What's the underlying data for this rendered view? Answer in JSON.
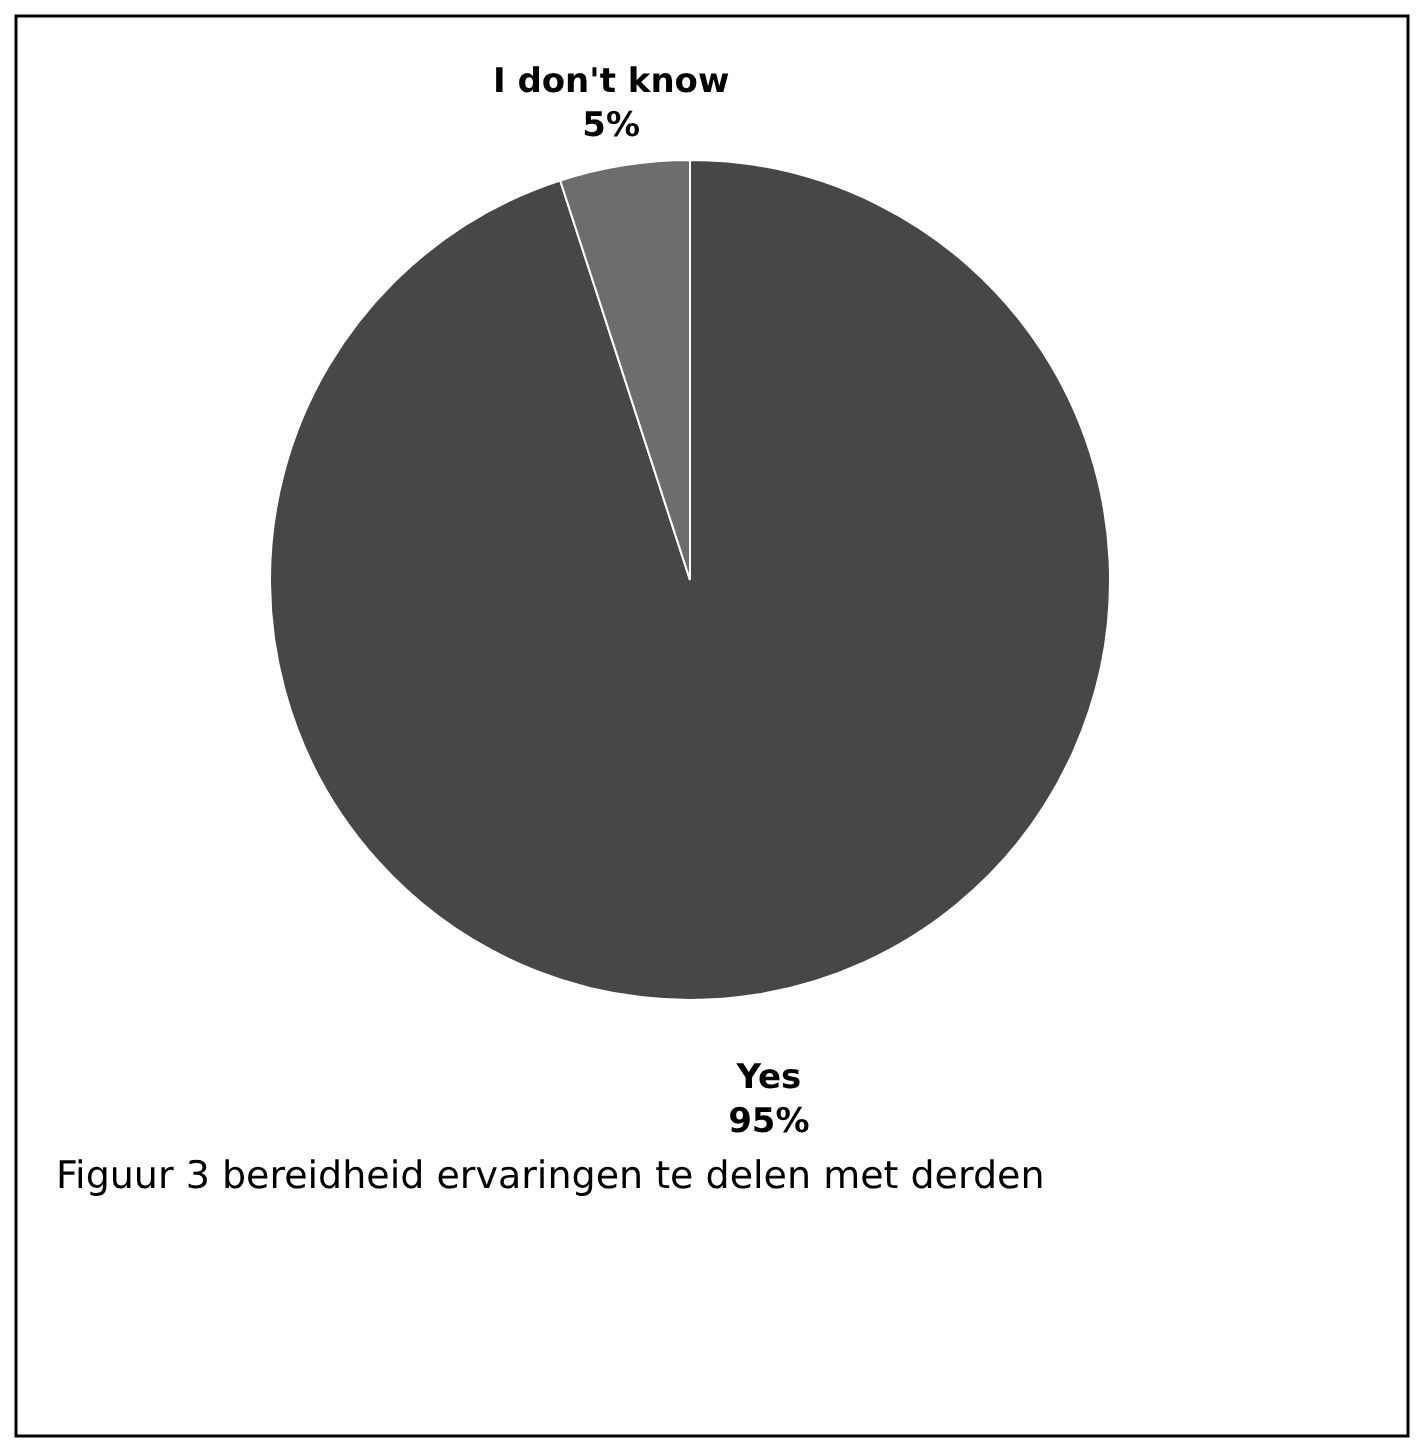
{
  "chart_data": {
    "type": "pie",
    "categories": [
      "Yes",
      "I don't know"
    ],
    "values": [
      95,
      5
    ],
    "colors": [
      "#474747",
      "#6d6d6d"
    ],
    "value_labels": [
      "95%",
      "5%"
    ],
    "annotations": [
      "Figuur 3 bereidheid ervaringen te delen met derden"
    ]
  }
}
